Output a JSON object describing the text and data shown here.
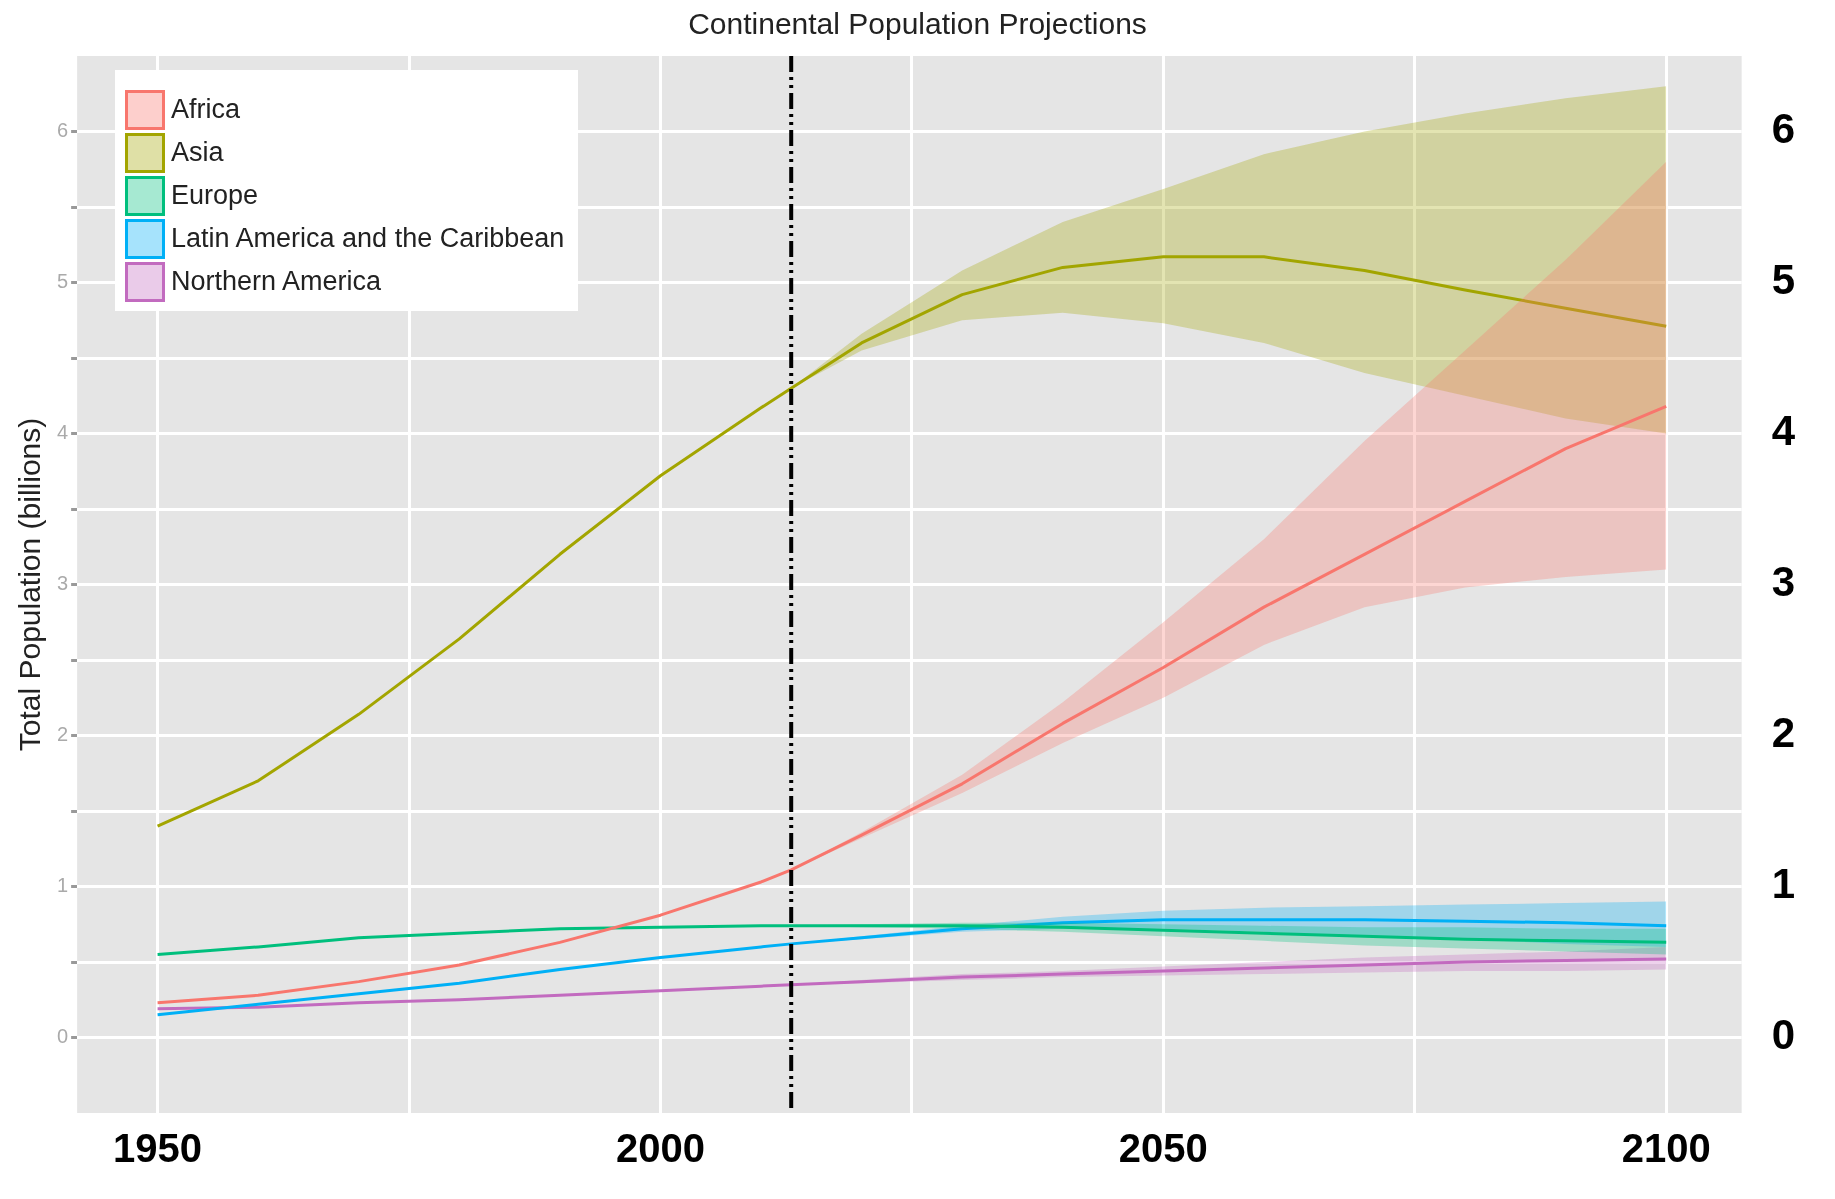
{
  "chart_data": {
    "type": "line",
    "title": "Continental Population Projections",
    "ylabel": "Total Population (billions)",
    "x": [
      1950,
      1960,
      1970,
      1980,
      1990,
      2000,
      2010,
      2013,
      2020,
      2030,
      2040,
      2050,
      2060,
      2070,
      2080,
      2090,
      2100
    ],
    "series": [
      {
        "name": "Africa",
        "color": "#f8766d",
        "values": [
          0.23,
          0.28,
          0.37,
          0.48,
          0.63,
          0.81,
          1.03,
          1.11,
          1.34,
          1.68,
          2.08,
          2.45,
          2.85,
          3.2,
          3.55,
          3.9,
          4.18
        ],
        "lower": [
          null,
          null,
          null,
          null,
          null,
          null,
          null,
          1.11,
          1.32,
          1.62,
          1.95,
          2.25,
          2.6,
          2.85,
          2.98,
          3.05,
          3.1
        ],
        "upper": [
          null,
          null,
          null,
          null,
          null,
          null,
          null,
          1.11,
          1.36,
          1.74,
          2.22,
          2.75,
          3.3,
          3.95,
          4.55,
          5.15,
          5.8
        ]
      },
      {
        "name": "Asia",
        "color": "#a3a500",
        "values": [
          1.4,
          1.7,
          2.14,
          2.64,
          3.2,
          3.72,
          4.17,
          4.3,
          4.6,
          4.92,
          5.1,
          5.17,
          5.17,
          5.08,
          4.95,
          4.83,
          4.71
        ],
        "lower": [
          null,
          null,
          null,
          null,
          null,
          null,
          null,
          4.3,
          4.55,
          4.75,
          4.8,
          4.73,
          4.6,
          4.4,
          4.25,
          4.1,
          4.0
        ],
        "upper": [
          null,
          null,
          null,
          null,
          null,
          null,
          null,
          4.3,
          4.66,
          5.08,
          5.4,
          5.62,
          5.85,
          6.0,
          6.12,
          6.22,
          6.3
        ]
      },
      {
        "name": "Europe",
        "color": "#00bf7d",
        "values": [
          0.55,
          0.6,
          0.66,
          0.69,
          0.72,
          0.73,
          0.74,
          0.74,
          0.74,
          0.74,
          0.73,
          0.71,
          0.69,
          0.67,
          0.65,
          0.64,
          0.63
        ],
        "lower": [
          null,
          null,
          null,
          null,
          null,
          null,
          null,
          0.74,
          0.73,
          0.72,
          0.7,
          0.67,
          0.64,
          0.61,
          0.59,
          0.57,
          0.55
        ],
        "upper": [
          null,
          null,
          null,
          null,
          null,
          null,
          null,
          0.74,
          0.75,
          0.76,
          0.76,
          0.75,
          0.74,
          0.73,
          0.73,
          0.72,
          0.72
        ]
      },
      {
        "name": "Latin America and the Caribbean",
        "color": "#00b0f6",
        "values": [
          0.15,
          0.22,
          0.29,
          0.36,
          0.45,
          0.53,
          0.6,
          0.62,
          0.66,
          0.72,
          0.76,
          0.78,
          0.78,
          0.78,
          0.77,
          0.76,
          0.74
        ],
        "lower": [
          null,
          null,
          null,
          null,
          null,
          null,
          null,
          0.62,
          0.65,
          0.7,
          0.72,
          0.72,
          0.7,
          0.67,
          0.65,
          0.62,
          0.6
        ],
        "upper": [
          null,
          null,
          null,
          null,
          null,
          null,
          null,
          0.62,
          0.67,
          0.74,
          0.8,
          0.84,
          0.86,
          0.87,
          0.88,
          0.89,
          0.9
        ]
      },
      {
        "name": "Northern America",
        "color": "#c26bbf",
        "values": [
          0.19,
          0.2,
          0.23,
          0.25,
          0.28,
          0.31,
          0.34,
          0.35,
          0.37,
          0.4,
          0.42,
          0.44,
          0.46,
          0.48,
          0.5,
          0.51,
          0.52
        ],
        "lower": [
          null,
          null,
          null,
          null,
          null,
          null,
          null,
          0.35,
          0.36,
          0.38,
          0.4,
          0.41,
          0.42,
          0.43,
          0.44,
          0.44,
          0.45
        ],
        "upper": [
          null,
          null,
          null,
          null,
          null,
          null,
          null,
          0.35,
          0.38,
          0.42,
          0.44,
          0.47,
          0.5,
          0.53,
          0.55,
          0.57,
          0.6
        ]
      }
    ],
    "xlim": [
      1942,
      2107.5
    ],
    "xticks": [
      1950,
      {
        "value": 1975,
        "label": null
      },
      2000,
      {
        "value": 2025,
        "label": null
      },
      2050,
      {
        "value": 2075,
        "label": null
      },
      2100
    ],
    "ylim": [
      -0.5,
      6.5
    ],
    "yticks": [
      0,
      {
        "value": 0.5,
        "label": null
      },
      1,
      {
        "value": 1.5,
        "label": null
      },
      2,
      {
        "value": 2.5,
        "label": null
      },
      3,
      {
        "value": 3.5,
        "label": null
      },
      4,
      {
        "value": 4.5,
        "label": null
      },
      5,
      {
        "value": 5.5,
        "label": null
      },
      6
    ],
    "y2lim": [
      -0.5,
      6.5
    ],
    "y2ticks": [
      0,
      1,
      2,
      3,
      4,
      5,
      6
    ],
    "ref_lines": [
      {
        "axis": "x",
        "value": 2013,
        "color": "#000000",
        "line_style": "dashed"
      }
    ],
    "grid": true,
    "legend": "top left"
  }
}
